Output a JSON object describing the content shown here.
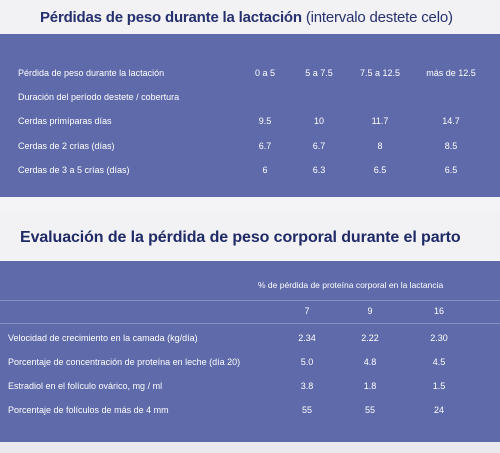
{
  "table1": {
    "title_bold": "Pérdidas de peso durante la lactación",
    "title_light": " (intervalo destete celo)",
    "header_label": "Pérdida de peso durante la lactación",
    "columns": [
      "0 a 5",
      "5 a 7.5",
      "7.5 a 12.5",
      "más de 12.5"
    ],
    "subheader": "Duración del período destete / cobertura",
    "rows": [
      {
        "label": "Cerdas primíparas días",
        "values": [
          "9.5",
          "10",
          "11.7",
          "14.7"
        ]
      },
      {
        "label": "Cerdas de 2 crías (días)",
        "values": [
          "6.7",
          "6.7",
          "8",
          "8.5"
        ]
      },
      {
        "label": "Cerdas de 3 a 5 crías (días)",
        "values": [
          "6",
          "6.3",
          "6.5",
          "6.5"
        ]
      }
    ]
  },
  "table2": {
    "title": "Evaluación de la pérdida de peso corporal durante el parto",
    "group_header": "% de pérdida de proteína corporal en la lactancia",
    "columns": [
      "7",
      "9",
      "16"
    ],
    "rows": [
      {
        "label": "Velocidad de crecimiento en la camada (kg/día)",
        "values": [
          "2.34",
          "2.22",
          "2.30"
        ]
      },
      {
        "label": "Porcentaje de concentración de proteína en leche (día 20)",
        "values": [
          "5.0",
          "4.8",
          "4.5"
        ]
      },
      {
        "label": "Estradiol en el folículo ovárico, mg / ml",
        "values": [
          "3.8",
          "1.8",
          "1.5"
        ]
      },
      {
        "label": "Porcentaje de folículos de más de 4 mm",
        "values": [
          "55",
          "55",
          "24"
        ]
      }
    ]
  }
}
